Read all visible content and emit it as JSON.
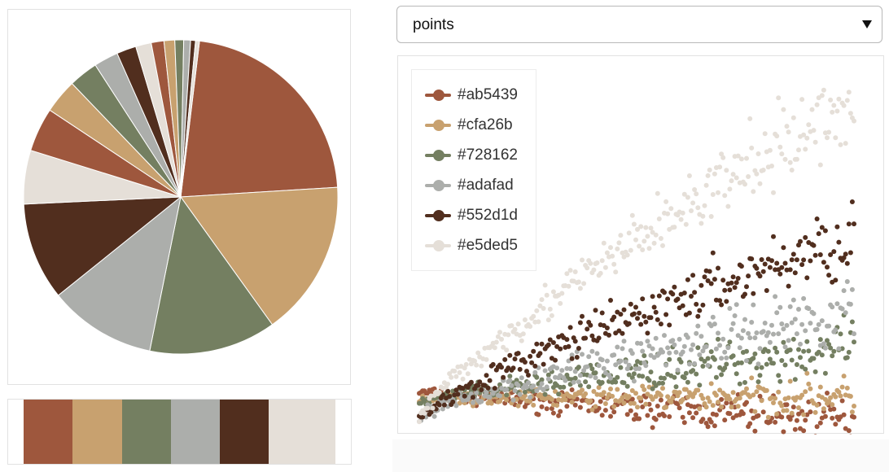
{
  "select": {
    "value": "points"
  },
  "palette": [
    {
      "hex": "#ab5439",
      "fill": "#9e573d"
    },
    {
      "hex": "#cfa26b",
      "fill": "#c8a16f"
    },
    {
      "hex": "#728162",
      "fill": "#747f61"
    },
    {
      "hex": "#adafad",
      "fill": "#acaeab"
    },
    {
      "hex": "#552d1d",
      "fill": "#512e1e"
    },
    {
      "hex": "#e5ded5",
      "fill": "#e5dfd8"
    }
  ],
  "chart_data": [
    {
      "type": "pie",
      "title": "",
      "slices": [
        {
          "color": "#ab5439",
          "value": 22
        },
        {
          "color": "#cfa26b",
          "value": 16
        },
        {
          "color": "#728162",
          "value": 13
        },
        {
          "color": "#adafad",
          "value": 11
        },
        {
          "color": "#552d1d",
          "value": 10
        },
        {
          "color": "#e5ded5",
          "value": 5.5
        },
        {
          "color": "#ab5439",
          "value": 4.5
        },
        {
          "color": "#cfa26b",
          "value": 3.5
        },
        {
          "color": "#728162",
          "value": 3
        },
        {
          "color": "#adafad",
          "value": 2.5
        },
        {
          "color": "#552d1d",
          "value": 2
        },
        {
          "color": "#e5ded5",
          "value": 1.6
        },
        {
          "color": "#ab5439",
          "value": 1.3
        },
        {
          "color": "#cfa26b",
          "value": 1.1
        },
        {
          "color": "#728162",
          "value": 0.9
        },
        {
          "color": "#adafad",
          "value": 0.7
        },
        {
          "color": "#552d1d",
          "value": 0.5
        },
        {
          "color": "#e5ded5",
          "value": 0.4
        }
      ]
    },
    {
      "type": "scatter",
      "title": "",
      "xlabel": "",
      "ylabel": "",
      "xlim": [
        0,
        1
      ],
      "ylim": [
        -0.2,
        4.2
      ],
      "legend_position": "top-left",
      "series": [
        {
          "name": "#ab5439",
          "color": "#ab5439",
          "start": 0.18,
          "end": -0.18,
          "spread": 0.12
        },
        {
          "name": "#cfa26b",
          "color": "#cfa26b",
          "start": 0.1,
          "end": 0.12,
          "spread": 0.1
        },
        {
          "name": "#728162",
          "color": "#728162",
          "start": 0.05,
          "end": 0.72,
          "spread": 0.14
        },
        {
          "name": "#adafad",
          "color": "#adafad",
          "start": 0.0,
          "end": 1.2,
          "spread": 0.18
        },
        {
          "name": "#552d1d",
          "color": "#552d1d",
          "start": 0.0,
          "end": 2.1,
          "spread": 0.18
        },
        {
          "name": "#e5ded5",
          "color": "#e5ded5",
          "start": 0.0,
          "end": 3.8,
          "spread": 0.22
        }
      ]
    }
  ]
}
